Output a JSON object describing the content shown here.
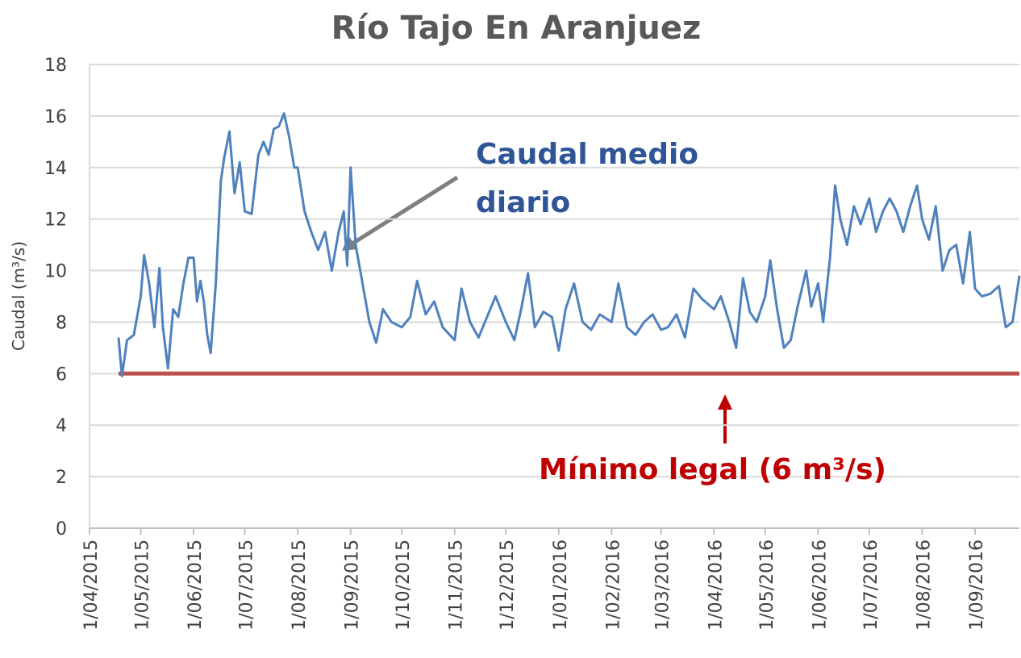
{
  "chart_data": {
    "type": "line",
    "title": "Río Tajo En Aranjuez",
    "ylabel": "Caudal (m³/s)",
    "xlim": [
      "2015-04-01",
      "2016-09-27"
    ],
    "ylim": [
      0,
      18
    ],
    "yticks": [
      0,
      2,
      4,
      6,
      8,
      10,
      12,
      14,
      16,
      18
    ],
    "grid": true,
    "xticks": [
      {
        "value": "2015-04-01",
        "label": "1/04/2015"
      },
      {
        "value": "2015-05-01",
        "label": "1/05/2015"
      },
      {
        "value": "2015-06-01",
        "label": "1/06/2015"
      },
      {
        "value": "2015-07-01",
        "label": "1/07/2015"
      },
      {
        "value": "2015-08-01",
        "label": "1/08/2015"
      },
      {
        "value": "2015-09-01",
        "label": "1/09/2015"
      },
      {
        "value": "2015-10-01",
        "label": "1/10/2015"
      },
      {
        "value": "2015-11-01",
        "label": "1/11/2015"
      },
      {
        "value": "2015-12-01",
        "label": "1/12/2015"
      },
      {
        "value": "2016-01-01",
        "label": "1/01/2016"
      },
      {
        "value": "2016-02-01",
        "label": "1/02/2016"
      },
      {
        "value": "2016-03-01",
        "label": "1/03/2016"
      },
      {
        "value": "2016-04-01",
        "label": "1/04/2016"
      },
      {
        "value": "2016-05-01",
        "label": "1/05/2016"
      },
      {
        "value": "2016-06-01",
        "label": "1/06/2016"
      },
      {
        "value": "2016-07-01",
        "label": "1/07/2016"
      },
      {
        "value": "2016-08-01",
        "label": "1/08/2016"
      },
      {
        "value": "2016-09-01",
        "label": "1/09/2016"
      }
    ],
    "series": [
      {
        "name": "Caudal medio diario",
        "color": "#4f81bd",
        "x": [
          "2015-04-18",
          "2015-04-20",
          "2015-04-23",
          "2015-04-27",
          "2015-05-01",
          "2015-05-03",
          "2015-05-06",
          "2015-05-09",
          "2015-05-12",
          "2015-05-14",
          "2015-05-17",
          "2015-05-20",
          "2015-05-23",
          "2015-05-26",
          "2015-05-29",
          "2015-06-01",
          "2015-06-03",
          "2015-06-05",
          "2015-06-07",
          "2015-06-09",
          "2015-06-11",
          "2015-06-14",
          "2015-06-17",
          "2015-06-19",
          "2015-06-22",
          "2015-06-25",
          "2015-06-28",
          "2015-07-01",
          "2015-07-05",
          "2015-07-09",
          "2015-07-12",
          "2015-07-15",
          "2015-07-18",
          "2015-07-21",
          "2015-07-24",
          "2015-07-27",
          "2015-07-30",
          "2015-08-01",
          "2015-08-05",
          "2015-08-09",
          "2015-08-13",
          "2015-08-17",
          "2015-08-21",
          "2015-08-25",
          "2015-08-28",
          "2015-08-30",
          "2015-09-01",
          "2015-09-04",
          "2015-09-08",
          "2015-09-12",
          "2015-09-16",
          "2015-09-20",
          "2015-09-25",
          "2015-10-01",
          "2015-10-06",
          "2015-10-10",
          "2015-10-15",
          "2015-10-20",
          "2015-10-25",
          "2015-11-01",
          "2015-11-05",
          "2015-11-10",
          "2015-11-15",
          "2015-11-20",
          "2015-11-25",
          "2015-12-01",
          "2015-12-06",
          "2015-12-10",
          "2015-12-14",
          "2015-12-18",
          "2015-12-23",
          "2015-12-28",
          "2016-01-01",
          "2016-01-05",
          "2016-01-10",
          "2016-01-15",
          "2016-01-20",
          "2016-01-25",
          "2016-02-01",
          "2016-02-05",
          "2016-02-10",
          "2016-02-15",
          "2016-02-20",
          "2016-02-25",
          "2016-03-01",
          "2016-03-05",
          "2016-03-10",
          "2016-03-15",
          "2016-03-20",
          "2016-03-25",
          "2016-04-01",
          "2016-04-05",
          "2016-04-10",
          "2016-04-14",
          "2016-04-18",
          "2016-04-22",
          "2016-04-26",
          "2016-05-01",
          "2016-05-04",
          "2016-05-08",
          "2016-05-12",
          "2016-05-16",
          "2016-05-20",
          "2016-05-25",
          "2016-05-28",
          "2016-06-01",
          "2016-06-04",
          "2016-06-08",
          "2016-06-11",
          "2016-06-14",
          "2016-06-18",
          "2016-06-22",
          "2016-06-26",
          "2016-07-01",
          "2016-07-05",
          "2016-07-09",
          "2016-07-13",
          "2016-07-17",
          "2016-07-21",
          "2016-07-25",
          "2016-07-29",
          "2016-08-01",
          "2016-08-05",
          "2016-08-09",
          "2016-08-13",
          "2016-08-17",
          "2016-08-21",
          "2016-08-25",
          "2016-08-29",
          "2016-09-01",
          "2016-09-05",
          "2016-09-10",
          "2016-09-15",
          "2016-09-19",
          "2016-09-23",
          "2016-09-27"
        ],
        "values": [
          7.4,
          5.9,
          7.3,
          7.5,
          9.0,
          10.6,
          9.5,
          7.8,
          10.1,
          7.8,
          6.2,
          8.5,
          8.2,
          9.5,
          10.5,
          10.5,
          8.8,
          9.6,
          8.8,
          7.5,
          6.8,
          9.5,
          13.5,
          14.4,
          15.4,
          13.0,
          14.2,
          12.3,
          12.2,
          14.5,
          15.0,
          14.5,
          15.5,
          15.6,
          16.1,
          15.2,
          14.0,
          14.0,
          12.3,
          11.5,
          10.8,
          11.5,
          10.0,
          11.5,
          12.3,
          10.2,
          14.0,
          11.0,
          9.5,
          8.0,
          7.2,
          8.5,
          8.0,
          7.8,
          8.2,
          9.6,
          8.3,
          8.8,
          7.8,
          7.3,
          9.3,
          8.0,
          7.4,
          8.2,
          9.0,
          8.0,
          7.3,
          8.5,
          9.9,
          7.8,
          8.4,
          8.2,
          6.9,
          8.5,
          9.5,
          8.0,
          7.7,
          8.3,
          8.0,
          9.5,
          7.8,
          7.5,
          8.0,
          8.3,
          7.7,
          7.8,
          8.3,
          7.4,
          9.3,
          8.9,
          8.5,
          9.0,
          8.0,
          7.0,
          9.7,
          8.4,
          8.0,
          9.0,
          10.4,
          8.5,
          7.0,
          7.3,
          8.6,
          10.0,
          8.6,
          9.5,
          8.0,
          10.5,
          13.3,
          12.0,
          11.0,
          12.5,
          11.8,
          12.8,
          11.5,
          12.3,
          12.8,
          12.3,
          11.5,
          12.5,
          13.3,
          12.0,
          11.2,
          12.5,
          10.0,
          10.8,
          11.0,
          9.5,
          11.5,
          9.3,
          9.0,
          9.1,
          9.4,
          7.8,
          8.0,
          9.8
        ]
      },
      {
        "name": "Mínimo legal (6 m³/s)",
        "color": "#c0504d",
        "x": [
          "2015-04-18",
          "2016-09-27"
        ],
        "values": [
          6,
          6
        ]
      }
    ]
  }
}
